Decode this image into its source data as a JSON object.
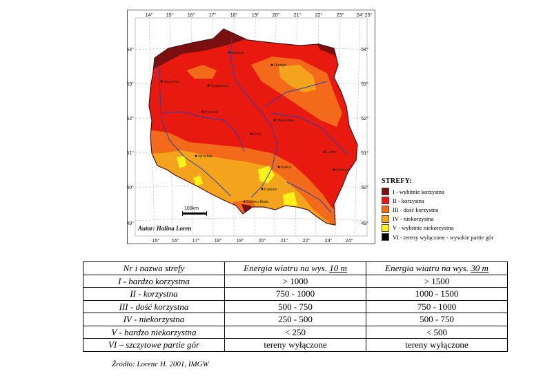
{
  "map": {
    "longitude_ticks_top": [
      "14°",
      "15°",
      "16°",
      "17°",
      "18°",
      "19°",
      "20°",
      "21°",
      "22°",
      "23°",
      "24°",
      "25°"
    ],
    "longitude_ticks_bottom": [
      "15°",
      "16°",
      "17°",
      "18°",
      "19°",
      "20°",
      "21°",
      "22°",
      "23°",
      "24°"
    ],
    "latitude_ticks_left": [
      "54°",
      "53°",
      "52°",
      "51°",
      "50°",
      "49°"
    ],
    "latitude_ticks_right": [
      "54°",
      "53°",
      "52°",
      "51°",
      "50°",
      "49°"
    ],
    "scale_label": "100km",
    "author": "Autor: Halina Loren",
    "cities": [
      {
        "name": "Gdańsk"
      },
      {
        "name": "Olsztyn"
      },
      {
        "name": "Szczecin"
      },
      {
        "name": "Bydgoszcz"
      },
      {
        "name": "Poznań"
      },
      {
        "name": "Warszawa"
      },
      {
        "name": "Łódź"
      },
      {
        "name": "Wrocław"
      },
      {
        "name": "Kielce"
      },
      {
        "name": "Lublin"
      },
      {
        "name": "Zamość"
      },
      {
        "name": "Kraków"
      },
      {
        "name": "Bielsko-Biała"
      }
    ],
    "colors": {
      "zone_I": "#7a1010",
      "zone_II": "#e81a10",
      "zone_III": "#f26a1a",
      "zone_IV": "#f4a41c",
      "zone_V": "#fff21a",
      "zone_VI": "#000000",
      "rivers": "#2a3fb0",
      "border": "#4a1010",
      "background_sea": "#ffffff"
    }
  },
  "legend": {
    "title": "STREFY:",
    "items": [
      {
        "label": "I - wybitnie korzystna",
        "color": "#7a1010"
      },
      {
        "label": "II - korzystna",
        "color": "#e81a10"
      },
      {
        "label": "III - dość korzystna",
        "color": "#f26a1a"
      },
      {
        "label": "IV - niekorzystna",
        "color": "#f4a41c"
      },
      {
        "label": "V - wybitnie niekorzystna",
        "color": "#fff21a"
      },
      {
        "label": "VI - tereny wyłączone - wysokie partie gór",
        "color": "#000000"
      }
    ]
  },
  "table": {
    "headers": {
      "name": "Nr i nazwa strefy",
      "h10_prefix": "Energia wiatru na wys. ",
      "h10_underlined": "10 m",
      "h30_prefix": "Energia wiatru na wys. ",
      "h30_underlined": "30 m"
    },
    "rows": [
      {
        "name": "I - bardzo korzystna",
        "e10": "> 1000",
        "e30": "> 1500"
      },
      {
        "name": "II - korzystna",
        "e10": "750 - 1000",
        "e30": "1000 - 1500"
      },
      {
        "name": "III - dość korzystna",
        "e10": "500 - 750",
        "e30": "750 - 1000"
      },
      {
        "name": "IV - niekorzystna",
        "e10": "250 - 500",
        "e30": "500 - 750"
      },
      {
        "name": "V - bardzo niekorzystna",
        "e10": "< 250",
        "e30": "< 500"
      },
      {
        "name": "VI – szczytowe partie gór",
        "e10": "tereny wyłączone",
        "e30": "tereny wyłączone"
      }
    ]
  },
  "source": "Źródło: Lorenc H. 2001, IMGW"
}
